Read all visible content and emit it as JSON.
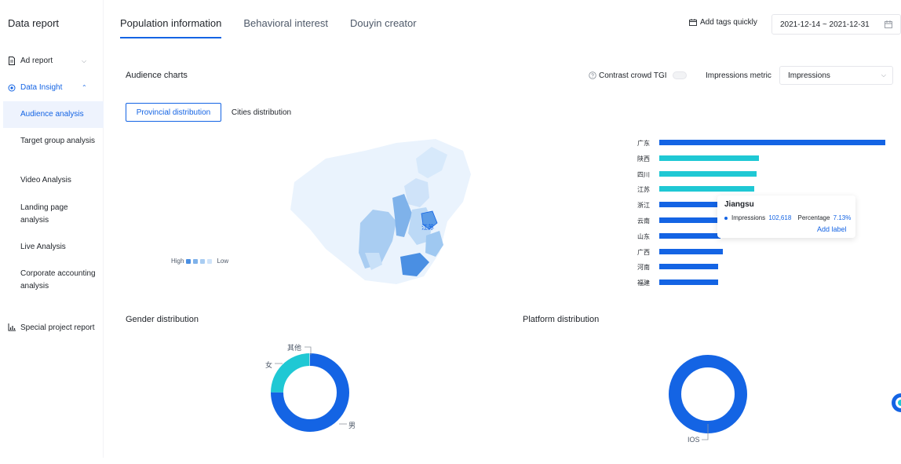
{
  "sidebar": {
    "title": "Data report",
    "items": [
      {
        "label": "Ad report",
        "icon": "file-icon"
      },
      {
        "label": "Data Insight",
        "icon": "insight-icon"
      },
      {
        "label": "Special project report",
        "icon": "bar-chart-icon"
      }
    ],
    "sub_items": [
      {
        "label": "Audience analysis"
      },
      {
        "label": "Target group analysis"
      },
      {
        "label": "Video Analysis"
      },
      {
        "label": "Landing page analysis"
      },
      {
        "label": "Live Analysis"
      },
      {
        "label": "Corporate accounting analysis"
      }
    ]
  },
  "tabs": [
    {
      "label": "Population information",
      "active": true
    },
    {
      "label": "Behavioral interest",
      "active": false
    },
    {
      "label": "Douyin creator",
      "active": false
    }
  ],
  "toolbar": {
    "add_tags_label": "Add tags quickly",
    "date_range": "2021-12-14 ~ 2021-12-31"
  },
  "audience": {
    "title": "Audience charts",
    "contrast_label": "Contrast crowd TGI",
    "metric_label": "Impressions metric",
    "metric_value": "Impressions",
    "segments": [
      "Provincial distribution",
      "Cities distribution"
    ],
    "map_legend": {
      "high": "High",
      "low": "Low"
    }
  },
  "colors": {
    "accent": "#1464e4",
    "teal": "#1fc8d4",
    "map_light": "#e6f1fc"
  },
  "chart_data": [
    {
      "type": "bar",
      "orientation": "horizontal",
      "categories": [
        "广东",
        "陕西",
        "四川",
        "江苏",
        "浙江",
        "云南",
        "山东",
        "广西",
        "河南",
        "福建"
      ],
      "values": [
        100,
        44,
        43,
        42,
        27,
        27,
        27,
        28,
        26,
        26
      ],
      "highlighted": [
        "陕西",
        "四川",
        "江苏"
      ],
      "tooltip": {
        "title": "Jiangsu",
        "metric": "Impressions",
        "value": "102,618",
        "percentage_label": "Percentage",
        "percentage": "7.13%",
        "link": "Add label"
      }
    },
    {
      "type": "pie",
      "title": "Gender distribution",
      "categories": [
        "男",
        "女",
        "其他"
      ],
      "values": [
        75,
        24.5,
        0.5
      ]
    },
    {
      "type": "pie",
      "title": "Platform distribution",
      "categories": [
        "IOS"
      ],
      "values": [
        100
      ]
    }
  ]
}
